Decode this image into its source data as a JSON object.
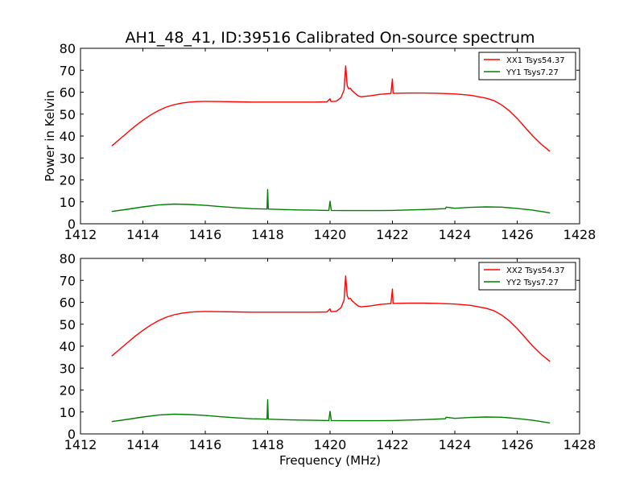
{
  "title": "AH1_48_41, ID:39516 Calibrated On-source spectrum",
  "xlabel": "Frequency (MHz)",
  "ylabel": "Power in Kelvin",
  "chart_data": [
    {
      "type": "line",
      "xlim": [
        1412,
        1428
      ],
      "ylim": [
        0,
        80
      ],
      "xticks": [
        1412,
        1414,
        1416,
        1418,
        1420,
        1422,
        1424,
        1426,
        1428
      ],
      "yticks": [
        0,
        10,
        20,
        30,
        40,
        50,
        60,
        70,
        80
      ],
      "grid": false,
      "legend_position": "top-right",
      "series": [
        {
          "name": "XX1 Tsys54.37",
          "color": "#ff0000",
          "x": [
            1413.0,
            1413.25,
            1413.5,
            1413.75,
            1414.0,
            1414.25,
            1414.5,
            1414.75,
            1415.0,
            1415.25,
            1415.5,
            1415.75,
            1416.0,
            1416.5,
            1417.0,
            1417.5,
            1418.0,
            1418.5,
            1419.0,
            1419.5,
            1419.9,
            1420.0,
            1420.02,
            1420.04,
            1420.2,
            1420.35,
            1420.45,
            1420.5,
            1420.55,
            1420.6,
            1420.65,
            1420.7,
            1420.8,
            1420.9,
            1421.0,
            1421.3,
            1421.6,
            1421.95,
            1422.0,
            1422.02,
            1422.04,
            1422.5,
            1423.0,
            1423.5,
            1424.0,
            1424.5,
            1425.0,
            1425.25,
            1425.5,
            1425.75,
            1426.0,
            1426.25,
            1426.5,
            1426.75,
            1427.05
          ],
          "y": [
            35.5,
            38.5,
            41.5,
            44.5,
            47.2,
            49.6,
            51.6,
            53.2,
            54.3,
            55.0,
            55.5,
            55.7,
            55.8,
            55.7,
            55.6,
            55.5,
            55.5,
            55.5,
            55.5,
            55.5,
            55.6,
            57.0,
            56.0,
            55.7,
            55.9,
            57.5,
            61.0,
            72.0,
            63.0,
            61.5,
            61.8,
            60.8,
            59.5,
            58.3,
            57.9,
            58.4,
            59.0,
            59.4,
            66.0,
            59.5,
            59.5,
            59.6,
            59.6,
            59.5,
            59.2,
            58.6,
            57.3,
            56.2,
            54.2,
            51.5,
            48.0,
            44.0,
            40.0,
            36.5,
            33.0
          ]
        },
        {
          "name": "YY1 Tsys7.27",
          "color": "#008000",
          "x": [
            1413.0,
            1413.5,
            1414.0,
            1414.5,
            1415.0,
            1415.5,
            1416.0,
            1416.5,
            1417.0,
            1417.5,
            1417.98,
            1418.0,
            1418.02,
            1418.5,
            1419.0,
            1419.5,
            1419.96,
            1420.0,
            1420.04,
            1420.5,
            1421.0,
            1421.5,
            1422.0,
            1422.5,
            1423.0,
            1423.5,
            1423.7,
            1423.72,
            1424.0,
            1424.5,
            1425.0,
            1425.5,
            1426.0,
            1426.5,
            1427.05
          ],
          "y": [
            5.6,
            6.6,
            7.7,
            8.6,
            9.0,
            8.8,
            8.4,
            7.8,
            7.3,
            6.9,
            6.7,
            15.6,
            6.7,
            6.5,
            6.3,
            6.2,
            6.1,
            10.3,
            6.1,
            6.0,
            6.0,
            6.0,
            6.1,
            6.3,
            6.5,
            6.8,
            6.9,
            7.6,
            7.1,
            7.5,
            7.7,
            7.6,
            7.0,
            6.2,
            5.0
          ]
        }
      ]
    },
    {
      "type": "line",
      "xlim": [
        1412,
        1428
      ],
      "ylim": [
        0,
        80
      ],
      "xticks": [
        1412,
        1414,
        1416,
        1418,
        1420,
        1422,
        1424,
        1426,
        1428
      ],
      "yticks": [
        0,
        10,
        20,
        30,
        40,
        50,
        60,
        70,
        80
      ],
      "grid": false,
      "legend_position": "top-right",
      "series": [
        {
          "name": "XX2 Tsys54.37",
          "color": "#ff0000",
          "x": [
            1413.0,
            1413.25,
            1413.5,
            1413.75,
            1414.0,
            1414.25,
            1414.5,
            1414.75,
            1415.0,
            1415.25,
            1415.5,
            1415.75,
            1416.0,
            1416.5,
            1417.0,
            1417.5,
            1418.0,
            1418.5,
            1419.0,
            1419.5,
            1419.9,
            1420.0,
            1420.02,
            1420.04,
            1420.2,
            1420.35,
            1420.45,
            1420.5,
            1420.55,
            1420.6,
            1420.65,
            1420.7,
            1420.8,
            1420.9,
            1421.0,
            1421.3,
            1421.6,
            1421.95,
            1422.0,
            1422.02,
            1422.04,
            1422.5,
            1423.0,
            1423.5,
            1424.0,
            1424.5,
            1425.0,
            1425.25,
            1425.5,
            1425.75,
            1426.0,
            1426.25,
            1426.5,
            1426.75,
            1427.05
          ],
          "y": [
            35.5,
            38.5,
            41.5,
            44.5,
            47.2,
            49.6,
            51.6,
            53.2,
            54.3,
            55.0,
            55.5,
            55.7,
            55.8,
            55.7,
            55.6,
            55.5,
            55.5,
            55.5,
            55.5,
            55.5,
            55.6,
            57.0,
            56.0,
            55.7,
            55.9,
            57.5,
            61.0,
            72.0,
            63.0,
            61.5,
            61.8,
            60.8,
            59.5,
            58.3,
            57.9,
            58.4,
            59.0,
            59.4,
            66.0,
            59.5,
            59.5,
            59.6,
            59.6,
            59.5,
            59.2,
            58.6,
            57.3,
            56.2,
            54.2,
            51.5,
            48.0,
            44.0,
            40.0,
            36.5,
            33.0
          ]
        },
        {
          "name": "YY2 Tsys7.27",
          "color": "#008000",
          "x": [
            1413.0,
            1413.5,
            1414.0,
            1414.5,
            1415.0,
            1415.5,
            1416.0,
            1416.5,
            1417.0,
            1417.5,
            1417.98,
            1418.0,
            1418.02,
            1418.5,
            1419.0,
            1419.5,
            1419.96,
            1420.0,
            1420.04,
            1420.5,
            1421.0,
            1421.5,
            1422.0,
            1422.5,
            1423.0,
            1423.5,
            1423.7,
            1423.72,
            1424.0,
            1424.5,
            1425.0,
            1425.5,
            1426.0,
            1426.5,
            1427.05
          ],
          "y": [
            5.6,
            6.6,
            7.7,
            8.6,
            9.0,
            8.8,
            8.4,
            7.8,
            7.3,
            6.9,
            6.7,
            15.6,
            6.7,
            6.5,
            6.3,
            6.2,
            6.1,
            10.3,
            6.1,
            6.0,
            6.0,
            6.0,
            6.1,
            6.3,
            6.5,
            6.8,
            6.9,
            7.6,
            7.1,
            7.5,
            7.7,
            7.6,
            7.0,
            6.2,
            5.0
          ]
        }
      ]
    }
  ]
}
